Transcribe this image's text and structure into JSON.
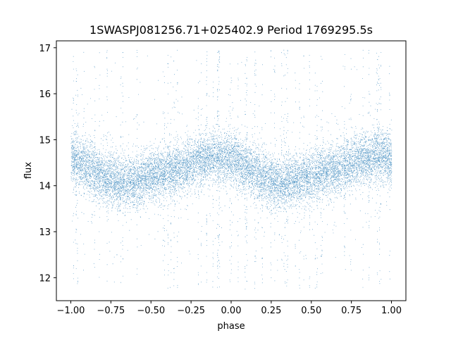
{
  "chart_data": {
    "type": "scatter",
    "title": "1SWASPJ081256.71+025402.9 Period 1769295.5s",
    "xlabel": "phase",
    "ylabel": "flux",
    "xlim": [
      -1.09,
      1.09
    ],
    "ylim": [
      11.5,
      17.15
    ],
    "x_ticks": [
      -1.0,
      -0.75,
      -0.5,
      -0.25,
      0.0,
      0.25,
      0.5,
      0.75,
      1.0
    ],
    "x_tick_labels": [
      "−1.00",
      "−0.75",
      "−0.50",
      "−0.25",
      "0.00",
      "0.25",
      "0.50",
      "0.75",
      "1.00"
    ],
    "y_ticks": [
      12,
      13,
      14,
      15,
      16,
      17
    ],
    "y_tick_labels": [
      "12",
      "13",
      "14",
      "15",
      "16",
      "17"
    ],
    "grid": false,
    "point_color": "#1f77b4",
    "series": [
      {
        "x_range": [
          -1.0,
          1.0
        ],
        "y_range": [
          11.75,
          16.95
        ],
        "profile_phase": [
          0.0,
          0.1,
          0.2,
          0.3,
          0.4,
          0.5,
          0.6,
          0.7,
          0.8,
          0.9,
          1.0
        ],
        "profile_flux": [
          14.6,
          14.4,
          14.2,
          14.05,
          14.1,
          14.2,
          14.3,
          14.4,
          14.55,
          14.65,
          14.6
        ],
        "point_count": 15000
      }
    ]
  }
}
